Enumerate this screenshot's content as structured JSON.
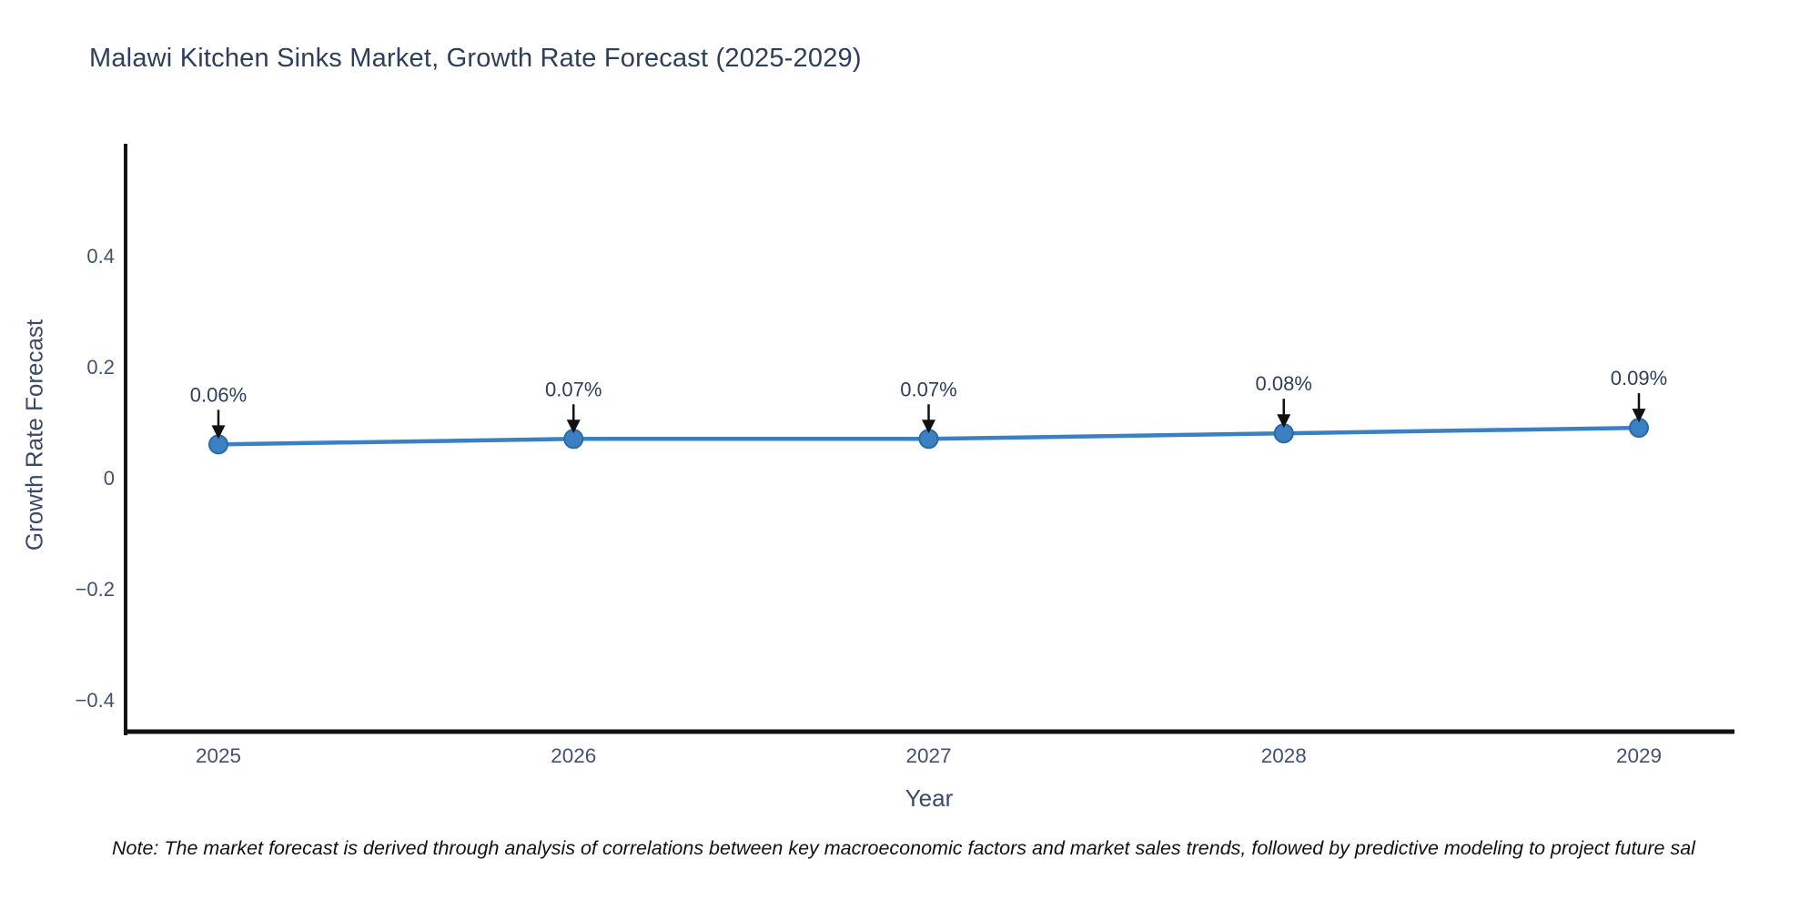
{
  "title": "Malawi Kitchen Sinks Market, Growth Rate Forecast (2025-2029)",
  "note": "Note: The market forecast is derived through analysis of correlations between key macroeconomic factors and market sales trends, followed by predictive modeling to project future sal",
  "chart_data": {
    "type": "line",
    "title": "Malawi Kitchen Sinks Market, Growth Rate Forecast (2025-2029)",
    "xlabel": "Year",
    "ylabel": "Growth Rate Forecast",
    "categories": [
      "2025",
      "2026",
      "2027",
      "2028",
      "2029"
    ],
    "values": [
      0.06,
      0.07,
      0.07,
      0.08,
      0.09
    ],
    "point_labels": [
      "0.06%",
      "0.07%",
      "0.07%",
      "0.08%",
      "0.09%"
    ],
    "yticks": [
      0.4,
      0.2,
      0,
      -0.2,
      -0.4
    ],
    "ylim": [
      -0.46,
      0.6
    ],
    "grid": false,
    "legend": "none",
    "colors": {
      "line": "#3a80c2",
      "marker_fill": "#3a80c2",
      "marker_edge": "#2a6aa5",
      "axis": "#131313",
      "title_text": "#2e3f5c",
      "tick_text": "#42516d",
      "annotation_text": "#2e3f5c",
      "annotation_arrow": "#111111"
    }
  }
}
